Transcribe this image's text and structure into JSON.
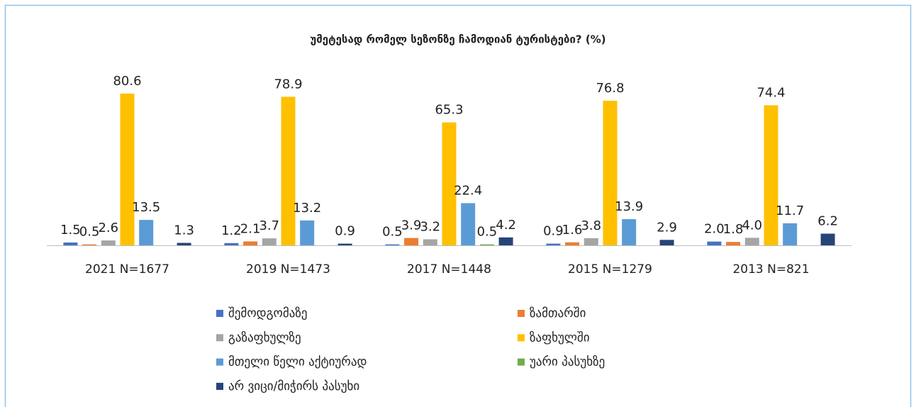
{
  "chart_data": {
    "type": "bar",
    "title": "უმეტესად რომელ სეზონზე ჩამოდიან ტურისტები? (%)",
    "categories": [
      "2021 N=1677",
      "2019 N=1473",
      "2017 N=1448",
      "2015 N=1279",
      "2013 N=821"
    ],
    "series": [
      {
        "name": "შემოდგომაზე",
        "color": "#4472c4",
        "values": [
          1.5,
          1.2,
          0.5,
          0.9,
          2.0
        ],
        "value_labels": [
          "1.5",
          "1.2",
          "0.5",
          "0.9",
          "2.0"
        ]
      },
      {
        "name": "ზამთარში",
        "color": "#ed7d31",
        "values": [
          0.5,
          2.1,
          3.9,
          1.6,
          1.8
        ],
        "value_labels": [
          "0.5",
          "2.1",
          "3.9",
          "1.6",
          "1.8"
        ]
      },
      {
        "name": "გაზაფხულზე",
        "color": "#a5a5a5",
        "values": [
          2.6,
          3.7,
          3.2,
          3.8,
          4.0
        ],
        "value_labels": [
          "2.6",
          "3.7",
          "3.2",
          "3.8",
          "4.0"
        ]
      },
      {
        "name": "ზაფხულში",
        "color": "#ffc000",
        "values": [
          80.6,
          78.9,
          65.3,
          76.8,
          74.4
        ],
        "value_labels": [
          "80.6",
          "78.9",
          "65.3",
          "76.8",
          "74.4"
        ]
      },
      {
        "name": "მთელი წელი აქტიურად",
        "color": "#5b9bd5",
        "values": [
          13.5,
          13.2,
          22.4,
          13.9,
          11.7
        ],
        "value_labels": [
          "13.5",
          "13.2",
          "22.4",
          "13.9",
          "11.7"
        ]
      },
      {
        "name": "უარი პასუხზე",
        "color": "#70ad47",
        "values": [
          null,
          null,
          0.5,
          null,
          null
        ],
        "value_labels": [
          null,
          null,
          "0.5",
          null,
          null
        ]
      },
      {
        "name": "არ ვიცი/მიჭირს პასუხი",
        "color": "#264478",
        "values": [
          1.3,
          0.9,
          4.2,
          2.9,
          6.2
        ],
        "value_labels": [
          "1.3",
          "0.9",
          "4.2",
          "2.9",
          "6.2"
        ]
      }
    ]
  }
}
